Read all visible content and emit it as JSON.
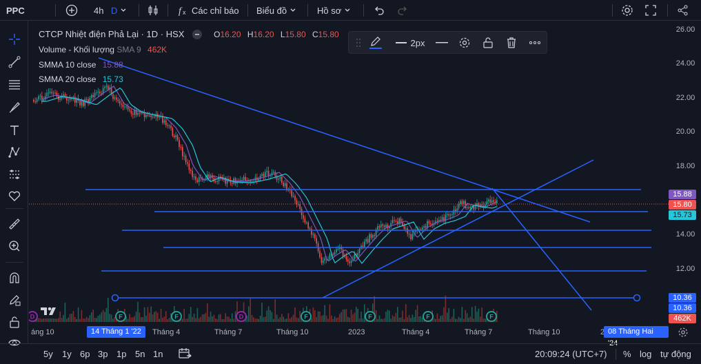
{
  "topbar": {
    "symbol": "PPC",
    "interval": "4h",
    "interval_d": "D",
    "indicators": "Các chỉ báo",
    "chart_type": "Biểu đồ",
    "profile": "Hồ sơ"
  },
  "legend": {
    "title": "CTCP Nhiệt điện Phả Lại · 1D · HSX",
    "o_label": "O",
    "o_val": "16.20",
    "h_label": "H",
    "h_val": "16.20",
    "l_label": "L",
    "l_val": "15.80",
    "c_label": "C",
    "c_val": "15.80",
    "vol_label": "Volume - Khối lượng",
    "vol_sma": "SMA 9",
    "vol_val": "462K",
    "smma10_label": "SMMA 10 close",
    "smma10_val": "15.88",
    "smma20_label": "SMMA 20 close",
    "smma20_val": "15.73"
  },
  "floating_toolbar": {
    "width_label": "2px"
  },
  "y_axis": [
    "26.00",
    "24.00",
    "22.00",
    "20.00",
    "18.00",
    "14.00",
    "12.00"
  ],
  "badges": {
    "smma10": "15.88",
    "close": "15.80",
    "smma20": "15.73",
    "line1": "10.36",
    "line2": "10.36",
    "vol": "462K"
  },
  "x_axis": {
    "labels": [
      "áng 10",
      "Tháng 4",
      "Tháng 7",
      "Tháng 10",
      "2023",
      "Tháng 4",
      "Tháng 7",
      "Tháng 10",
      "2"
    ],
    "cursor_left": "14 Tháng 1 '22",
    "cursor_right": "08 Tháng Hai '24"
  },
  "bottombar": {
    "ranges": [
      "5y",
      "1y",
      "6p",
      "3p",
      "1p",
      "5n",
      "1n"
    ],
    "clock": "20:09:24 (UTC+7)",
    "percent": "%",
    "log": "log",
    "auto": "tự động"
  },
  "colors": {
    "up": "#26a69a",
    "down": "#ef5350",
    "smma10": "#7e57c2",
    "smma20": "#26c6da",
    "drawing": "#2962ff"
  }
}
